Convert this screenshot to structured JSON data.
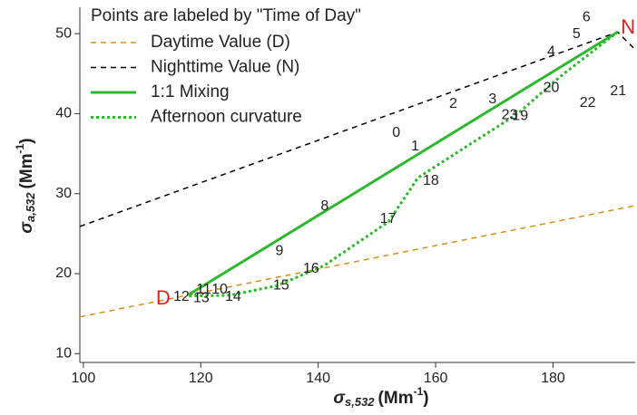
{
  "chart_data": {
    "type": "line",
    "xlim": [
      99.4,
      194
    ],
    "ylim": [
      8.9,
      53.3
    ],
    "xticks": [
      100,
      120,
      140,
      160,
      180
    ],
    "yticks": [
      10,
      20,
      30,
      40,
      50
    ],
    "xlabel": {
      "symbol": "σ",
      "subscript": "s,532",
      "unit": "(Mm",
      "exponent": "-1",
      "close": ")"
    },
    "ylabel": {
      "symbol": "σ",
      "subscript": "a,532",
      "unit": "(Mm",
      "exponent": "-1",
      "close": ")"
    },
    "legend_title": "Points are labeled by \"Time of Day\"",
    "legend": "upper left",
    "series": [
      {
        "name": "Daytime Value (D)",
        "color": "#d4901a",
        "dash": "dashed",
        "x": [
          99.4,
          194
        ],
        "y": [
          14.6,
          28.5
        ]
      },
      {
        "name": "Nighttime Value (N)",
        "color": "#000000",
        "dash": "dashed",
        "x": [
          99.4,
          191,
          194
        ],
        "y": [
          25.9,
          50.2,
          48
        ]
      },
      {
        "name": "1:1 Mixing",
        "color": "#2db82d",
        "dash": "solid",
        "x": [
          118,
          191
        ],
        "y": [
          17.4,
          50.2
        ]
      },
      {
        "name": "Afternoon curvature",
        "color": "#2db82d",
        "dash": "dotted",
        "x": [
          118,
          125,
          133,
          141,
          152,
          157,
          174,
          181,
          191
        ],
        "y": [
          17.2,
          17.3,
          18.5,
          21,
          26.5,
          32,
          40,
          44.5,
          50.2
        ]
      }
    ],
    "points": {
      "labels": [
        "0",
        "1",
        "2",
        "3",
        "4",
        "5",
        "6",
        "8",
        "9",
        "10",
        "11",
        "12",
        "13",
        "14",
        "15",
        "16",
        "17",
        "18",
        "19",
        "20",
        "21",
        "22",
        "23"
      ],
      "x": [
        153.3,
        156.5,
        163,
        169.7,
        179.7,
        184,
        185.7,
        141.1,
        133.4,
        123.2,
        120.5,
        116.7,
        120.1,
        125.5,
        133.7,
        138.8,
        151.9,
        159.2,
        174.4,
        179.7,
        191.1,
        185.9,
        172.6
      ],
      "y": [
        37.6,
        35.9,
        41.2,
        41.8,
        47.7,
        49.9,
        52.0,
        28.4,
        22.8,
        18.0,
        18.0,
        17.1,
        16.9,
        17.1,
        18.5,
        20.6,
        26.8,
        31.6,
        39.7,
        43.2,
        42.8,
        41.3,
        39.8
      ]
    },
    "annotations": [
      {
        "text": "D",
        "x": 113.6,
        "y": 16.8
      },
      {
        "text": "N",
        "x": 192.8,
        "y": 50.7
      }
    ]
  }
}
